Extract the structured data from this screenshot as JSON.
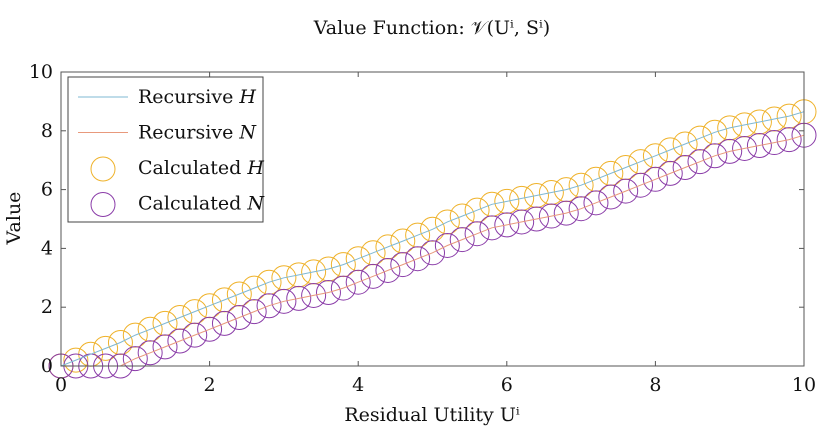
{
  "chart_data": {
    "type": "line",
    "title": "Value Function: 𝒱(Uⁱ, Sⁱ)",
    "xlabel": "Residual Utility Uⁱ",
    "ylabel": "Value",
    "xlim": [
      0,
      10
    ],
    "ylim": [
      0,
      10
    ],
    "xticks": [
      0,
      2,
      4,
      6,
      8,
      10
    ],
    "yticks": [
      0,
      2,
      4,
      6,
      8,
      10
    ],
    "grid": false,
    "legend_position": "top-left",
    "x": [
      0.0,
      0.2,
      0.4,
      0.6,
      0.8,
      1.0,
      1.2,
      1.4,
      1.6,
      1.8,
      2.0,
      2.2,
      2.4,
      2.6,
      2.8,
      3.0,
      3.2,
      3.4,
      3.6,
      3.8,
      4.0,
      4.2,
      4.4,
      4.6,
      4.8,
      5.0,
      5.2,
      5.4,
      5.6,
      5.8,
      6.0,
      6.2,
      6.4,
      6.6,
      6.8,
      7.0,
      7.2,
      7.4,
      7.6,
      7.8,
      8.0,
      8.2,
      8.4,
      8.6,
      8.8,
      9.0,
      9.2,
      9.4,
      9.6,
      9.8,
      10.0
    ],
    "series": [
      {
        "name": "Recursive H",
        "label_text": "Recursive ",
        "label_var": "H",
        "style": "line",
        "color": "#7fb8d3",
        "values": [
          0.0,
          0.2,
          0.4,
          0.6,
          0.8,
          1.05,
          1.25,
          1.45,
          1.65,
          1.85,
          2.05,
          2.25,
          2.45,
          2.65,
          2.85,
          3.0,
          3.1,
          3.2,
          3.3,
          3.45,
          3.65,
          3.85,
          4.05,
          4.25,
          4.45,
          4.65,
          4.9,
          5.1,
          5.3,
          5.5,
          5.6,
          5.7,
          5.8,
          5.9,
          6.0,
          6.15,
          6.35,
          6.55,
          6.75,
          6.95,
          7.15,
          7.35,
          7.55,
          7.75,
          7.95,
          8.1,
          8.2,
          8.3,
          8.4,
          8.5,
          8.65
        ]
      },
      {
        "name": "Recursive N",
        "label_text": "Recursive ",
        "label_var": "N",
        "style": "line",
        "color": "#e8997c",
        "values": [
          0.0,
          0.0,
          0.0,
          0.0,
          0.0,
          0.25,
          0.45,
          0.65,
          0.85,
          1.05,
          1.25,
          1.45,
          1.65,
          1.85,
          2.05,
          2.2,
          2.3,
          2.4,
          2.5,
          2.65,
          2.85,
          3.05,
          3.25,
          3.45,
          3.65,
          3.85,
          4.1,
          4.3,
          4.5,
          4.7,
          4.8,
          4.9,
          5.0,
          5.1,
          5.2,
          5.35,
          5.55,
          5.75,
          5.95,
          6.15,
          6.35,
          6.55,
          6.75,
          6.95,
          7.15,
          7.3,
          7.4,
          7.5,
          7.6,
          7.7,
          7.85
        ]
      },
      {
        "name": "Calculated H",
        "label_text": "Calculated ",
        "label_var": "H",
        "style": "marker",
        "color": "#efb22a",
        "values": [
          0.0,
          0.2,
          0.4,
          0.6,
          0.8,
          1.05,
          1.25,
          1.45,
          1.65,
          1.85,
          2.05,
          2.25,
          2.45,
          2.65,
          2.85,
          3.0,
          3.1,
          3.2,
          3.3,
          3.45,
          3.65,
          3.85,
          4.05,
          4.25,
          4.45,
          4.65,
          4.9,
          5.1,
          5.3,
          5.5,
          5.6,
          5.7,
          5.8,
          5.9,
          6.0,
          6.15,
          6.35,
          6.55,
          6.75,
          6.95,
          7.15,
          7.35,
          7.55,
          7.75,
          7.95,
          8.1,
          8.2,
          8.3,
          8.4,
          8.5,
          8.65
        ]
      },
      {
        "name": "Calculated N",
        "label_text": "Calculated ",
        "label_var": "N",
        "style": "marker",
        "color": "#8a3ca8",
        "values": [
          0.0,
          0.0,
          0.0,
          0.0,
          0.0,
          0.25,
          0.45,
          0.65,
          0.85,
          1.05,
          1.25,
          1.45,
          1.65,
          1.85,
          2.05,
          2.2,
          2.3,
          2.4,
          2.5,
          2.65,
          2.85,
          3.05,
          3.25,
          3.45,
          3.65,
          3.85,
          4.1,
          4.3,
          4.5,
          4.7,
          4.8,
          4.9,
          5.0,
          5.1,
          5.2,
          5.35,
          5.55,
          5.75,
          5.95,
          6.15,
          6.35,
          6.55,
          6.75,
          6.95,
          7.15,
          7.3,
          7.4,
          7.5,
          7.6,
          7.7,
          7.85
        ]
      }
    ]
  }
}
